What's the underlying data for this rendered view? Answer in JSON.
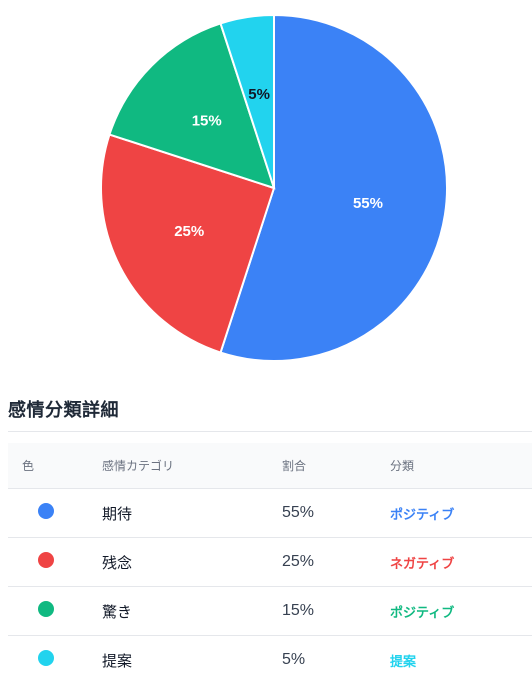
{
  "chart_data": {
    "type": "pie",
    "slices": [
      {
        "category": "期待",
        "value": 55,
        "label": "55%",
        "color": "#3b82f6"
      },
      {
        "category": "残念",
        "value": 25,
        "label": "25%",
        "color": "#ef4444"
      },
      {
        "category": "驚き",
        "value": 15,
        "label": "15%",
        "color": "#10b981"
      },
      {
        "category": "提案",
        "value": 5,
        "label": "5%",
        "color": "#22d3ee"
      }
    ],
    "start_angle": "12 o'clock",
    "direction": "clockwise"
  },
  "section": {
    "title": "感情分類詳細"
  },
  "table": {
    "headers": {
      "color": "色",
      "category": "感情カテゴリ",
      "ratio": "割合",
      "classification": "分類"
    },
    "rows": [
      {
        "category": "期待",
        "ratio": "55%",
        "classification": "ポジティブ",
        "dot_color": "#3b82f6",
        "class_color": "#3b82f6"
      },
      {
        "category": "残念",
        "ratio": "25%",
        "classification": "ネガティブ",
        "dot_color": "#ef4444",
        "class_color": "#ef4444"
      },
      {
        "category": "驚き",
        "ratio": "15%",
        "classification": "ポジティブ",
        "dot_color": "#10b981",
        "class_color": "#10b981"
      },
      {
        "category": "提案",
        "ratio": "5%",
        "classification": "提案",
        "dot_color": "#22d3ee",
        "class_color": "#22d3ee"
      }
    ]
  }
}
